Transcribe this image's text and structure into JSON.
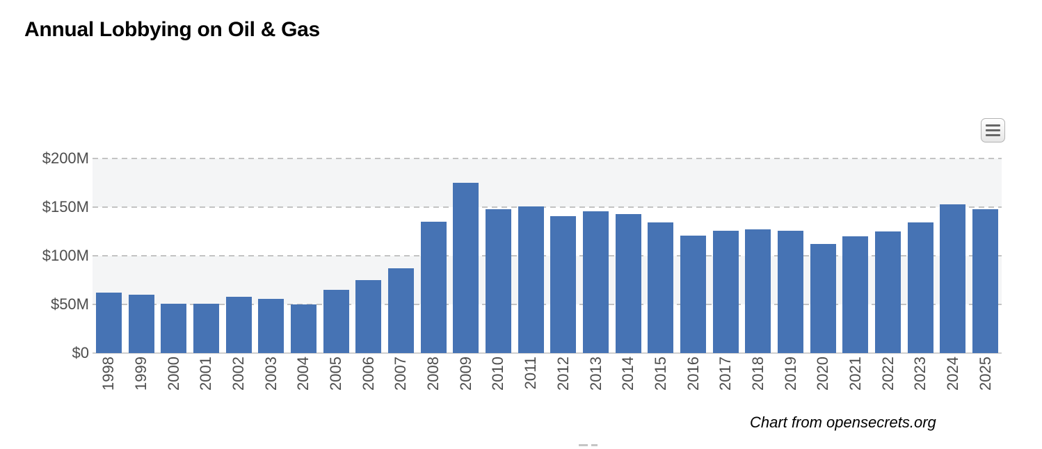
{
  "header": {
    "title": "Annual Lobbying on Oil & Gas"
  },
  "toolbar": {
    "menu_button_label": "chart-context-menu"
  },
  "footer": {
    "attribution": "Chart from opensecrets.org"
  },
  "chart_data": {
    "type": "bar",
    "title": "Annual Lobbying on Oil & Gas",
    "unit": "USD millions per year",
    "categories": [
      "1998",
      "1999",
      "2000",
      "2001",
      "2002",
      "2003",
      "2004",
      "2005",
      "2006",
      "2007",
      "2008",
      "2009",
      "2010",
      "2011",
      "2012",
      "2013",
      "2014",
      "2015",
      "2016",
      "2017",
      "2018",
      "2019",
      "2020",
      "2021",
      "2022",
      "2023",
      "2024",
      "2025"
    ],
    "values": [
      62,
      60,
      51,
      51,
      58,
      56,
      50,
      65,
      75,
      87,
      135,
      175,
      148,
      151,
      141,
      146,
      143,
      134,
      121,
      126,
      127,
      126,
      112,
      120,
      125,
      134,
      153,
      148
    ],
    "xlabel": "",
    "ylabel": "",
    "ylim": [
      0,
      200
    ],
    "ytick_interval": 50,
    "yticks": [
      {
        "value": 200,
        "label": "$200M"
      },
      {
        "value": 150,
        "label": "$150M"
      },
      {
        "value": 100,
        "label": "$100M"
      },
      {
        "value": 50,
        "label": "$50M"
      },
      {
        "value": 0,
        "label": "$0"
      }
    ],
    "grid": "horizontal-dashed",
    "alternate_bands": [
      [
        150,
        200
      ],
      [
        50,
        100
      ]
    ],
    "legend": "none",
    "colors": {
      "bar": "#4673b4",
      "band": "#f4f5f6",
      "gridline": "#c3c3c3",
      "axis_line": "#cfcfcf",
      "tick_label": "#4d4d4d",
      "title": "#000000"
    }
  }
}
